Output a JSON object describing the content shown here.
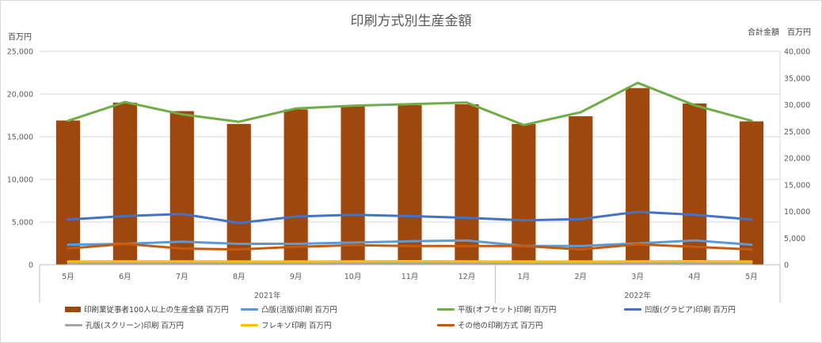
{
  "chart_data": {
    "type": "bar",
    "title": "印刷方式別生産金額",
    "y_left_unit": "百万円",
    "y_right_unit": "合計金額　百万円",
    "ylim_left": [
      0,
      25000
    ],
    "ylim_right": [
      0,
      40000
    ],
    "y_left_ticks": [
      "0",
      "5,000",
      "10,000",
      "15,000",
      "20,000",
      "25,000"
    ],
    "y_right_ticks": [
      "0",
      "5,000",
      "10,000",
      "15,000",
      "20,000",
      "25,000",
      "30,000",
      "35,000",
      "40,000"
    ],
    "y_left_tick_values": [
      0,
      5000,
      10000,
      15000,
      20000,
      25000
    ],
    "y_right_tick_values": [
      0,
      5000,
      10000,
      15000,
      20000,
      25000,
      30000,
      35000,
      40000
    ],
    "categories": [
      "5月",
      "6月",
      "7月",
      "8月",
      "9月",
      "10月",
      "11月",
      "12月",
      "1月",
      "2月",
      "3月",
      "4月",
      "5月"
    ],
    "groups": [
      {
        "label": "2021年",
        "span": 8
      },
      {
        "label": "2022年",
        "span": 5
      }
    ],
    "grid": "horizontal",
    "legend_position": "bottom",
    "series": [
      {
        "name": "印刷業従事者100人以上の生産金額 百万円",
        "kind": "bar",
        "axis": "left",
        "color": "#9e480e",
        "values": [
          16900,
          19000,
          18000,
          16500,
          18200,
          18600,
          18700,
          18800,
          16500,
          17400,
          20700,
          18900,
          16800
        ]
      },
      {
        "name": "凸版(活版)印刷 百万円",
        "kind": "line",
        "axis": "left",
        "color": "#5b9bd5",
        "values": [
          2350,
          2450,
          2700,
          2450,
          2450,
          2600,
          2750,
          2850,
          2200,
          2200,
          2500,
          2850,
          2350
        ]
      },
      {
        "name": "平版(オフセット)印刷 百万円",
        "kind": "line",
        "axis": "right",
        "color": "#70ad47",
        "values": [
          27000,
          30500,
          28200,
          26800,
          29300,
          29800,
          30100,
          30400,
          26200,
          28600,
          34100,
          29900,
          27000
        ]
      },
      {
        "name": "凹版(グラビア)印刷 百万円",
        "kind": "line",
        "axis": "left",
        "color": "#4472c4",
        "values": [
          5300,
          5700,
          5950,
          4900,
          5650,
          5850,
          5700,
          5500,
          5200,
          5350,
          6200,
          5850,
          5300
        ]
      },
      {
        "name": "孔版(スクリーン)印刷 百万円",
        "kind": "line",
        "axis": "left",
        "color": "#a5a5a5",
        "values": [
          150,
          150,
          150,
          150,
          150,
          150,
          150,
          150,
          150,
          150,
          150,
          150,
          150
        ]
      },
      {
        "name": "フレキソ印刷 百万円",
        "kind": "line",
        "axis": "left",
        "color": "#ffc000",
        "values": [
          380,
          400,
          400,
          380,
          380,
          400,
          420,
          400,
          380,
          380,
          400,
          420,
          380
        ]
      },
      {
        "name": "その他の印刷方式 百万円",
        "kind": "line",
        "axis": "left",
        "color": "#c55a11",
        "values": [
          1900,
          2450,
          1900,
          1800,
          2100,
          2300,
          2200,
          2200,
          2200,
          1800,
          2400,
          2100,
          1800
        ]
      }
    ]
  }
}
